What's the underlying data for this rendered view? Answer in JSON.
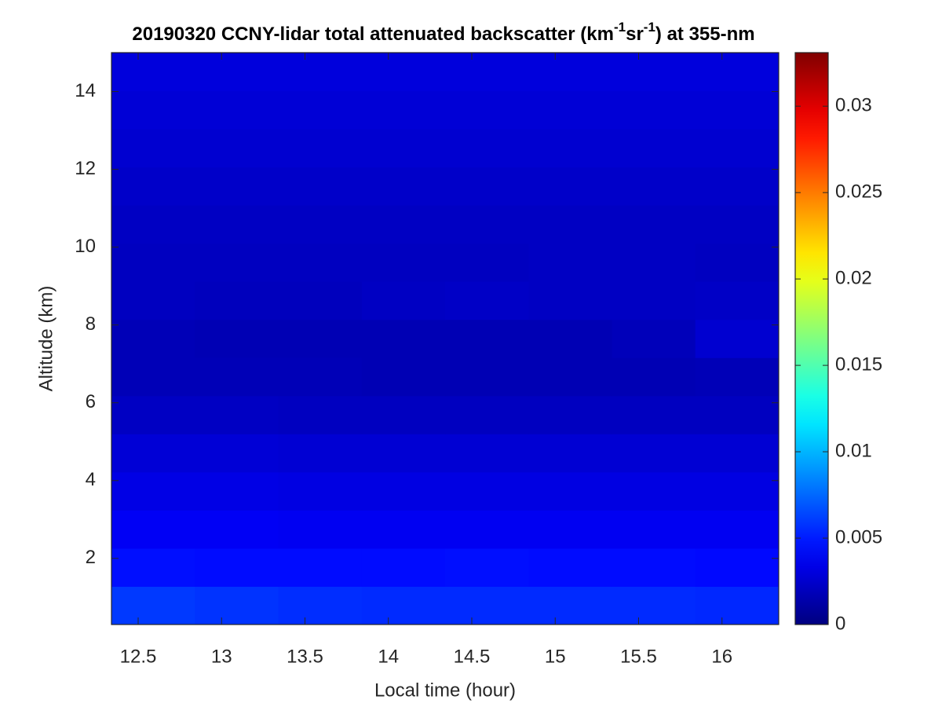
{
  "chart_data": {
    "type": "heatmap",
    "title": [
      "20190320 CCNY-lidar total attenuated backscatter (km",
      "-1",
      "sr",
      "-1",
      ") at 355-nm"
    ],
    "x_label": "Local time (hour)",
    "y_label": "Altitude (km)",
    "x": [
      12.59,
      13.09,
      13.59,
      14.09,
      14.59,
      15.09,
      15.59,
      16.09
    ],
    "y": [
      0.79,
      1.77,
      2.75,
      3.73,
      4.71,
      5.69,
      6.67,
      7.65,
      8.63,
      9.61,
      10.59,
      11.57,
      12.55,
      13.53,
      14.51
    ],
    "z": [
      [
        0.006,
        0.0058,
        0.0056,
        0.0055,
        0.0055,
        0.0055,
        0.0055,
        0.0054
      ],
      [
        0.0046,
        0.0045,
        0.0045,
        0.0045,
        0.0046,
        0.0045,
        0.0045,
        0.0044
      ],
      [
        0.0038,
        0.0038,
        0.0037,
        0.0037,
        0.0037,
        0.0037,
        0.0037,
        0.0037
      ],
      [
        0.0033,
        0.0033,
        0.0032,
        0.0032,
        0.0032,
        0.0032,
        0.0032,
        0.0032
      ],
      [
        0.0028,
        0.0028,
        0.0027,
        0.0027,
        0.0027,
        0.0027,
        0.0027,
        0.0027
      ],
      [
        0.0022,
        0.0022,
        0.0021,
        0.0021,
        0.0021,
        0.0021,
        0.0021,
        0.0021
      ],
      [
        0.0018,
        0.0018,
        0.0018,
        0.0017,
        0.0017,
        0.0017,
        0.0017,
        0.0018
      ],
      [
        0.0018,
        0.0017,
        0.0017,
        0.0017,
        0.0017,
        0.0017,
        0.0019,
        0.0026
      ],
      [
        0.0021,
        0.002,
        0.002,
        0.0022,
        0.0023,
        0.0022,
        0.0022,
        0.0023
      ],
      [
        0.0021,
        0.0021,
        0.0021,
        0.0021,
        0.0021,
        0.0022,
        0.0022,
        0.0021
      ],
      [
        0.0022,
        0.0022,
        0.0022,
        0.0022,
        0.0022,
        0.0022,
        0.0022,
        0.0022
      ],
      [
        0.0024,
        0.0024,
        0.0024,
        0.0024,
        0.0024,
        0.0024,
        0.0024,
        0.0024
      ],
      [
        0.0026,
        0.0026,
        0.0026,
        0.0026,
        0.0026,
        0.0026,
        0.0026,
        0.0026
      ],
      [
        0.0028,
        0.0028,
        0.0028,
        0.0028,
        0.0028,
        0.0028,
        0.0028,
        0.0028
      ],
      [
        0.003,
        0.003,
        0.003,
        0.003,
        0.003,
        0.003,
        0.003,
        0.003
      ]
    ],
    "colormap": "jet",
    "xlim": [
      12.34,
      16.34
    ],
    "xticks": [
      12.5,
      13,
      13.5,
      14,
      14.5,
      15,
      15.5,
      16
    ],
    "ylim": [
      0.3,
      15
    ],
    "yticks": [
      2,
      4,
      6,
      8,
      10,
      12,
      14
    ],
    "clim": [
      0,
      0.0331
    ],
    "cticks": [
      0,
      0.005,
      0.01,
      0.015,
      0.02,
      0.025,
      0.03
    ]
  }
}
